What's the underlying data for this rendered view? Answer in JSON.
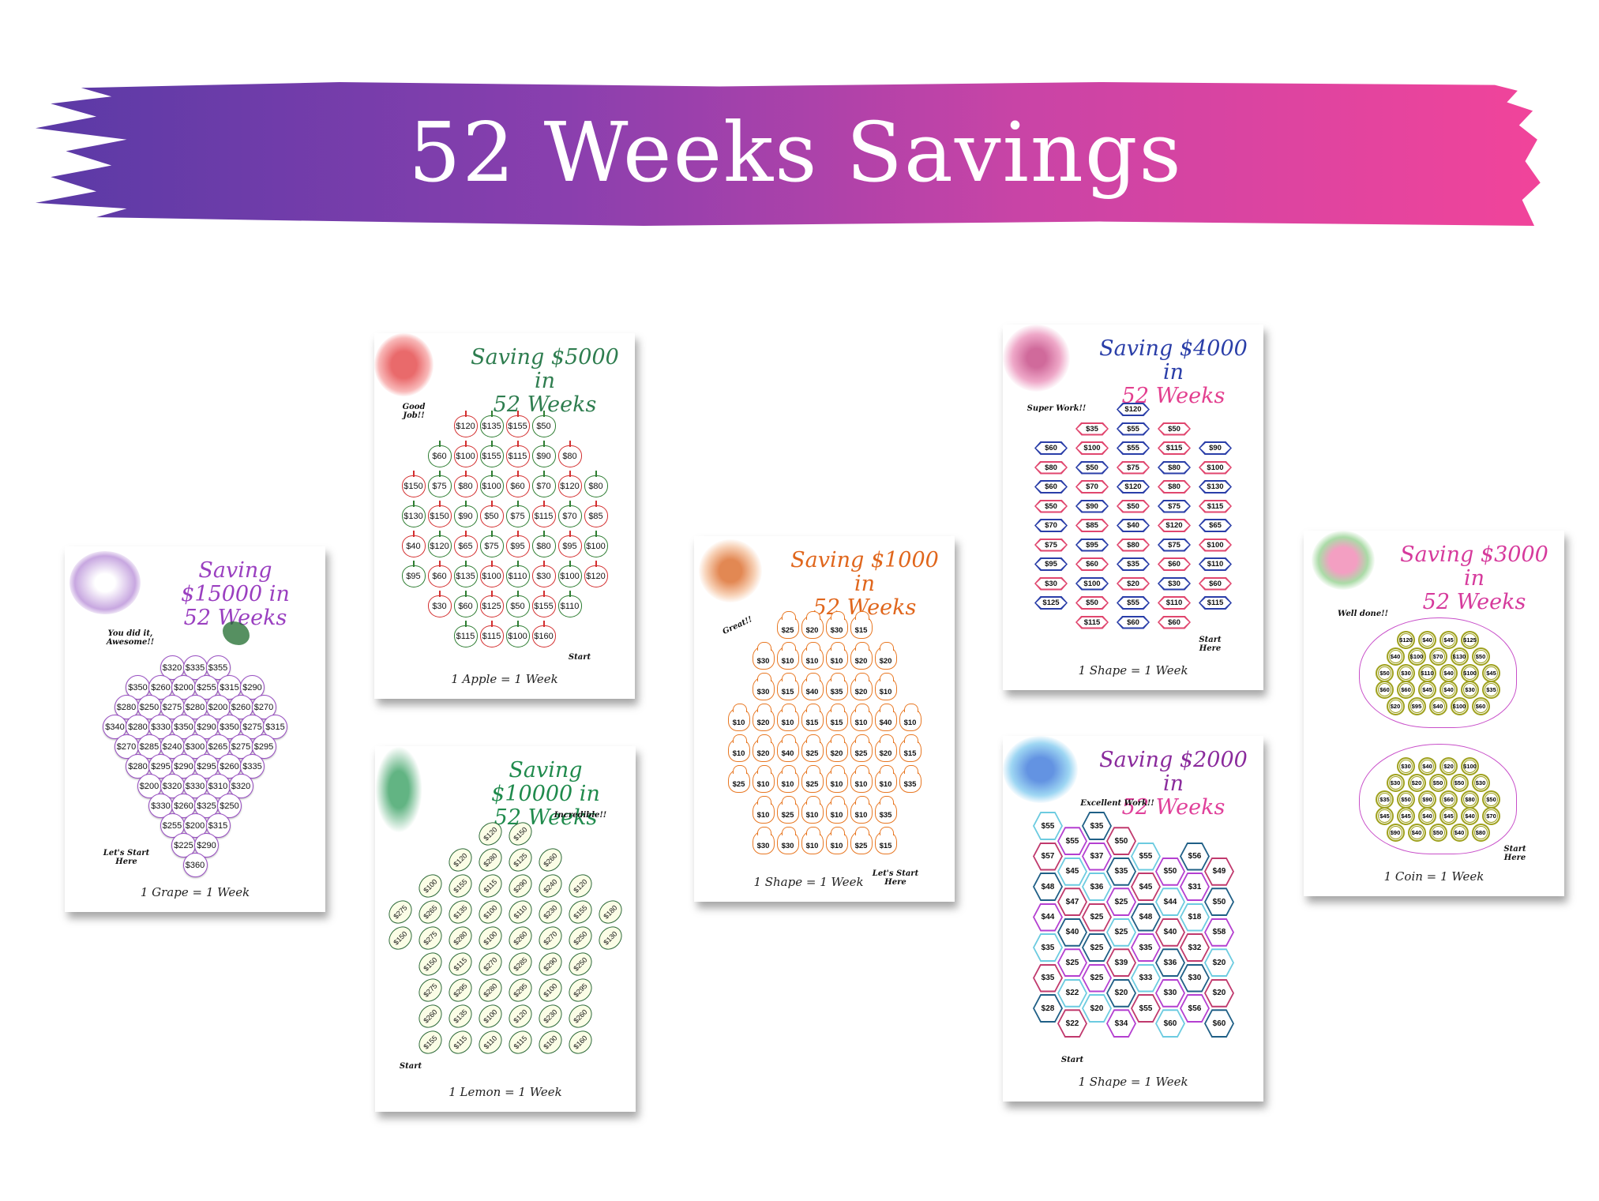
{
  "banner": {
    "title": "52 Weeks Savings",
    "gradient": [
      "#5a3aa6",
      "#f2449a"
    ]
  },
  "cards": {
    "grape": {
      "title1": "Saving $15000 in",
      "title2": "52 Weeks",
      "color": "#9a3fc0",
      "end": "You did it, Awesome!!",
      "start": "Let's Start Here",
      "footer": "1 Grape = 1 Week",
      "rows": [
        [
          "$320",
          "$335",
          "$355"
        ],
        [
          "$350",
          "$260",
          "$200",
          "$255",
          "$315",
          "$290"
        ],
        [
          "$280",
          "$250",
          "$275",
          "$280",
          "$200",
          "$260",
          "$270"
        ],
        [
          "$340",
          "$280",
          "$330",
          "$350",
          "$290",
          "$350",
          "$275",
          "$315"
        ],
        [
          "$270",
          "$285",
          "$240",
          "$300",
          "$265",
          "$275",
          "$295"
        ],
        [
          "$280",
          "$295",
          "$290",
          "$295",
          "$260",
          "$335"
        ],
        [
          "$200",
          "$320",
          "$330",
          "$310",
          "$320"
        ],
        [
          "$330",
          "$260",
          "$325",
          "$250"
        ],
        [
          "$255",
          "$200",
          "$315"
        ],
        [
          "$225",
          "$290"
        ],
        [
          "$360"
        ]
      ]
    },
    "apple": {
      "title1": "Saving $5000 in",
      "title2": "52 Weeks",
      "color": "#2e7d4f",
      "end": "Good Job!!",
      "start": "Start",
      "footer": "1 Apple = 1 Week",
      "rows": [
        [
          "$120",
          "$135",
          "$155",
          "$50"
        ],
        [
          "$60",
          "$100",
          "$155",
          "$115",
          "$90",
          "$80"
        ],
        [
          "$150",
          "$75",
          "$80",
          "$100",
          "$60",
          "$70",
          "$120",
          "$80"
        ],
        [
          "$130",
          "$150",
          "$90",
          "$50",
          "$75",
          "$115",
          "$70",
          "$85"
        ],
        [
          "$40",
          "$120",
          "$65",
          "$75",
          "$95",
          "$80",
          "$95",
          "$100"
        ],
        [
          "$95",
          "$60",
          "$135",
          "$100",
          "$110",
          "$30",
          "$100",
          "$120"
        ],
        [
          "$30",
          "$60",
          "$125",
          "$50",
          "$155",
          "$110"
        ],
        [
          "$115",
          "$115",
          "$100",
          "$160"
        ]
      ]
    },
    "lemon": {
      "title1": "Saving $10000 in",
      "title2": "52 Weeks",
      "color": "#1f8a4c",
      "end": "Incredible!!",
      "start": "Start",
      "footer": "1 Lemon = 1 Week",
      "rows": [
        [
          "$120",
          "$150"
        ],
        [
          "$120",
          "$280",
          "$125",
          "$260"
        ],
        [
          "$100",
          "$155",
          "$115",
          "$290",
          "$240",
          "$120"
        ],
        [
          "$275",
          "$265",
          "$135",
          "$100",
          "$110",
          "$230",
          "$155",
          "$180"
        ],
        [
          "$150",
          "$275",
          "$280",
          "$100",
          "$260",
          "$270",
          "$250",
          "$130"
        ],
        [
          "$150",
          "$115",
          "$270",
          "$285",
          "$290",
          "$250"
        ],
        [
          "$275",
          "$295",
          "$280",
          "$295",
          "$100",
          "$295"
        ],
        [
          "$260",
          "$135",
          "$100",
          "$120",
          "$230",
          "$260"
        ],
        [
          "$155",
          "$115",
          "$110",
          "$115",
          "$100",
          "$160"
        ]
      ]
    },
    "bunny": {
      "title1": "Saving $1000 in",
      "title2": "52 Weeks",
      "color": "#e0661c",
      "end": "Great!!",
      "start": "Let's Start Here",
      "footer": "1 Shape = 1 Week",
      "rows": [
        [
          "$25",
          "$20",
          "$30",
          "$15"
        ],
        [
          "$30",
          "$10",
          "$10",
          "$10",
          "$20",
          "$20"
        ],
        [
          "$30",
          "$15",
          "$40",
          "$35",
          "$20",
          "$10"
        ],
        [
          "$10",
          "$20",
          "$10",
          "$15",
          "$15",
          "$10",
          "$40",
          "$10"
        ],
        [
          "$10",
          "$20",
          "$40",
          "$25",
          "$20",
          "$25",
          "$20",
          "$15"
        ],
        [
          "$25",
          "$10",
          "$10",
          "$25",
          "$10",
          "$10",
          "$10",
          "$35"
        ],
        [
          "$10",
          "$25",
          "$10",
          "$10",
          "$10",
          "$35"
        ],
        [
          "$30",
          "$30",
          "$10",
          "$10",
          "$25",
          "$15"
        ]
      ]
    },
    "hex": {
      "title1": "Saving $4000 in",
      "title2": "52 Weeks",
      "color": "#2a3ea8",
      "color2": "#e33f8f",
      "end": "Super Work!!",
      "start": "Start Here",
      "footer": "1 Shape = 1 Week",
      "rows": [
        [
          "$120"
        ],
        [
          "$35",
          "$55",
          "$50"
        ],
        [
          "$60",
          "$100",
          "$55",
          "$115",
          "$90"
        ],
        [
          "$80",
          "$50",
          "$75",
          "$80",
          "$100"
        ],
        [
          "$60",
          "$70",
          "$120",
          "$80",
          "$130"
        ],
        [
          "$50",
          "$90",
          "$50",
          "$75",
          "$115"
        ],
        [
          "$70",
          "$85",
          "$40",
          "$120",
          "$65"
        ],
        [
          "$75",
          "$95",
          "$80",
          "$75",
          "$100"
        ],
        [
          "$95",
          "$60",
          "$35",
          "$60",
          "$110"
        ],
        [
          "$30",
          "$100",
          "$20",
          "$30",
          "$60"
        ],
        [
          "$125",
          "$50",
          "$55",
          "$110",
          "$115"
        ],
        [
          "$115",
          "$60",
          "$60"
        ]
      ]
    },
    "honey": {
      "title1": "Saving $2000 in",
      "title2": "52 Weeks",
      "color": "#8a2a9c",
      "color2": "#e0409a",
      "end": "Excellent Work!!",
      "start": "Start",
      "footer": "1 Shape = 1 Week",
      "columns": [
        [
          "$55",
          "$57",
          "$48",
          "$44",
          "$35",
          "$35",
          "$28"
        ],
        [
          "$55",
          "$45",
          "$47",
          "$40",
          "$25",
          "$22",
          "$22"
        ],
        [
          "$35",
          "$37",
          "$36",
          "$25",
          "$25",
          "$25",
          "$20"
        ],
        [
          "$50",
          "$35",
          "$25",
          "$25",
          "$39",
          "$20",
          "$34"
        ],
        [
          "$55",
          "$45",
          "$48",
          "$35",
          "$33",
          "$55"
        ],
        [
          "$50",
          "$44",
          "$40",
          "$36",
          "$30",
          "$60"
        ],
        [
          "$56",
          "$31",
          "$18",
          "$32",
          "$30",
          "$56"
        ],
        [
          "$49",
          "$50",
          "$58",
          "$20",
          "$20",
          "$60"
        ]
      ]
    },
    "pig": {
      "title1": "Saving $3000 in",
      "title2": "52 Weeks",
      "color": "#d63a9c",
      "end": "Well done!!",
      "start": "Start Here",
      "footer": "1 Coin = 1 Week",
      "pig1": [
        [
          "$120",
          "$40",
          "$45",
          "$125"
        ],
        [
          "$40",
          "$100",
          "$70",
          "$130",
          "$50"
        ],
        [
          "$50",
          "$30",
          "$110",
          "$40",
          "$100",
          "$45"
        ],
        [
          "$60",
          "$60",
          "$45",
          "$40",
          "$30",
          "$35"
        ],
        [
          "$20",
          "$95",
          "$40",
          "$100",
          "$60"
        ]
      ],
      "pig2": [
        [
          "$30",
          "$40",
          "$20",
          "$100"
        ],
        [
          "$30",
          "$20",
          "$50",
          "$50",
          "$30"
        ],
        [
          "$35",
          "$50",
          "$90",
          "$60",
          "$80",
          "$50"
        ],
        [
          "$45",
          "$45",
          "$40",
          "$45",
          "$40",
          "$70"
        ],
        [
          "$90",
          "$40",
          "$50",
          "$40",
          "$80"
        ]
      ]
    }
  }
}
